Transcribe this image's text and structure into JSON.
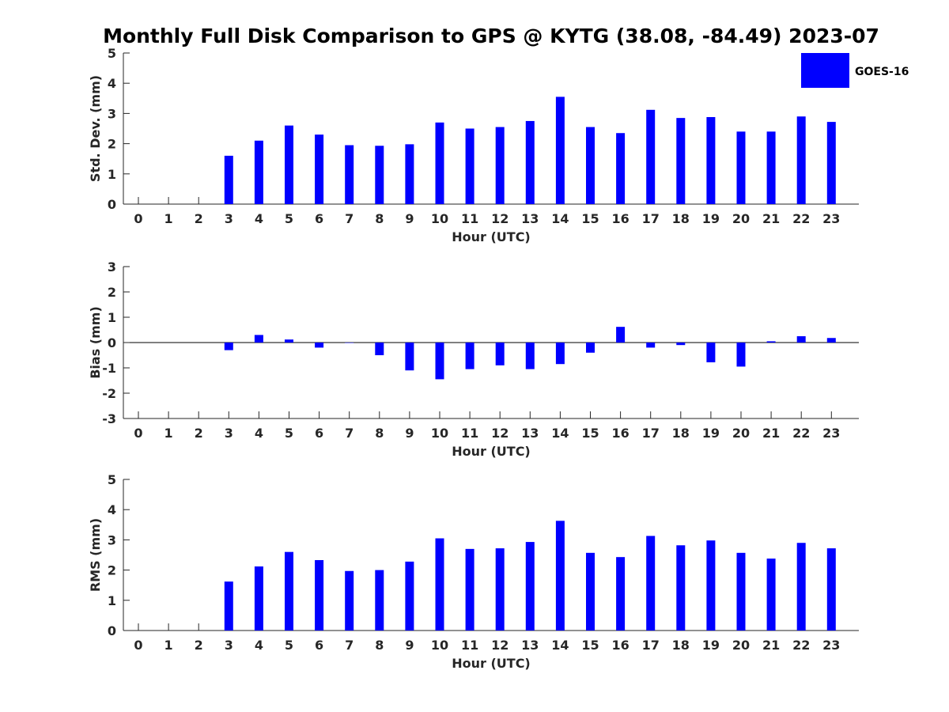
{
  "title": "Monthly Full Disk Comparison to GPS @ KYTG (38.08, -84.49) 2023-07",
  "colors": {
    "bar": "#0000ff",
    "axis": "#262626",
    "text": "#262626"
  },
  "legend": {
    "label": "GOES-16",
    "placement": "top-right"
  },
  "chart_data": [
    {
      "type": "bar",
      "name": "std-dev",
      "title": "",
      "xlabel": "Hour (UTC)",
      "ylabel": "Std. Dev. (mm)",
      "ylim": [
        0,
        5
      ],
      "yticks": [
        0,
        1,
        2,
        3,
        4,
        5
      ],
      "categories": [
        "0",
        "1",
        "2",
        "3",
        "4",
        "5",
        "6",
        "7",
        "8",
        "9",
        "10",
        "11",
        "12",
        "13",
        "14",
        "15",
        "16",
        "17",
        "18",
        "19",
        "20",
        "21",
        "22",
        "23"
      ],
      "series": [
        {
          "name": "GOES-16",
          "values": [
            null,
            null,
            null,
            1.6,
            2.1,
            2.6,
            2.3,
            1.95,
            1.93,
            1.98,
            2.7,
            2.5,
            2.55,
            2.75,
            3.55,
            2.55,
            2.35,
            3.12,
            2.85,
            2.88,
            2.4,
            2.4,
            2.9,
            2.72
          ]
        }
      ]
    },
    {
      "type": "bar",
      "name": "bias",
      "title": "",
      "xlabel": "Hour (UTC)",
      "ylabel": "Bias (mm)",
      "ylim": [
        -3,
        3
      ],
      "yticks": [
        -3,
        -2,
        -1,
        0,
        1,
        2,
        3
      ],
      "categories": [
        "0",
        "1",
        "2",
        "3",
        "4",
        "5",
        "6",
        "7",
        "8",
        "9",
        "10",
        "11",
        "12",
        "13",
        "14",
        "15",
        "16",
        "17",
        "18",
        "19",
        "20",
        "21",
        "22",
        "23"
      ],
      "series": [
        {
          "name": "GOES-16",
          "values": [
            null,
            null,
            null,
            -0.3,
            0.3,
            0.12,
            -0.2,
            0.0,
            -0.5,
            -1.1,
            -1.45,
            -1.05,
            -0.9,
            -1.05,
            -0.85,
            -0.4,
            0.62,
            -0.2,
            -0.1,
            -0.78,
            -0.95,
            0.05,
            0.25,
            0.18
          ]
        }
      ]
    },
    {
      "type": "bar",
      "name": "rms",
      "title": "",
      "xlabel": "Hour (UTC)",
      "ylabel": "RMS (mm)",
      "ylim": [
        0,
        5
      ],
      "yticks": [
        0,
        1,
        2,
        3,
        4,
        5
      ],
      "categories": [
        "0",
        "1",
        "2",
        "3",
        "4",
        "5",
        "6",
        "7",
        "8",
        "9",
        "10",
        "11",
        "12",
        "13",
        "14",
        "15",
        "16",
        "17",
        "18",
        "19",
        "20",
        "21",
        "22",
        "23"
      ],
      "series": [
        {
          "name": "GOES-16",
          "values": [
            null,
            null,
            null,
            1.62,
            2.12,
            2.6,
            2.33,
            1.97,
            2.0,
            2.28,
            3.05,
            2.7,
            2.72,
            2.93,
            3.63,
            2.57,
            2.43,
            3.13,
            2.82,
            2.98,
            2.57,
            2.38,
            2.9,
            2.72
          ]
        }
      ]
    }
  ]
}
